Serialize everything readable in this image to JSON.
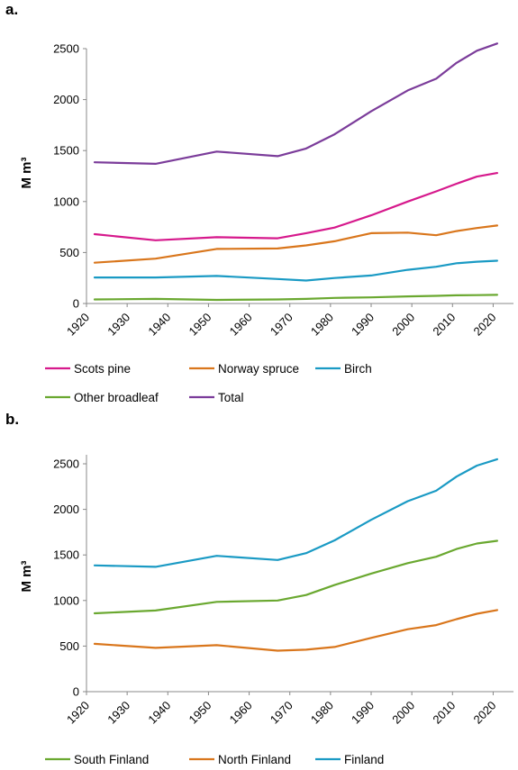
{
  "chart_data": [
    {
      "panel_label": "a.",
      "type": "line",
      "ylabel": "M m³",
      "x": [
        1922,
        1937,
        1952,
        1967,
        1974,
        1981,
        1990,
        1999,
        2006,
        2011,
        2016,
        2021
      ],
      "xlim": [
        1920,
        2025
      ],
      "xticks": [
        "1920",
        "1930",
        "1940",
        "1950",
        "1960",
        "1970",
        "1980",
        "1990",
        "2000",
        "2010",
        "2020"
      ],
      "ylim": [
        0,
        2500
      ],
      "yticks": [
        "0",
        "500",
        "1000",
        "1500",
        "2000",
        "2500"
      ],
      "grid": false,
      "legend_position": "bottom",
      "series": [
        {
          "name": "Scots pine",
          "color": "#d6198c",
          "values": [
            680,
            620,
            650,
            640,
            690,
            745,
            865,
            1000,
            1100,
            1175,
            1245,
            1280
          ]
        },
        {
          "name": "Norway spruce",
          "color": "#d9761c",
          "values": [
            400,
            440,
            535,
            540,
            570,
            610,
            690,
            695,
            670,
            710,
            740,
            765
          ]
        },
        {
          "name": "Birch",
          "color": "#1a9ac4",
          "values": [
            255,
            255,
            270,
            240,
            225,
            250,
            275,
            330,
            360,
            395,
            410,
            420
          ]
        },
        {
          "name": "Other broadleaf",
          "color": "#6aa830",
          "values": [
            40,
            45,
            35,
            40,
            45,
            55,
            60,
            70,
            75,
            80,
            82,
            85
          ]
        },
        {
          "name": "Total",
          "color": "#7b3c9a",
          "values": [
            1385,
            1370,
            1490,
            1445,
            1520,
            1660,
            1885,
            2090,
            2205,
            2360,
            2480,
            2550
          ]
        }
      ]
    },
    {
      "panel_label": "b.",
      "type": "line",
      "ylabel": "M m³",
      "x": [
        1922,
        1937,
        1952,
        1967,
        1974,
        1981,
        1990,
        1999,
        2006,
        2011,
        2016,
        2021
      ],
      "xlim": [
        1920,
        2025
      ],
      "xticks": [
        "1920",
        "1930",
        "1940",
        "1950",
        "1960",
        "1970",
        "1980",
        "1990",
        "2000",
        "2010",
        "2020"
      ],
      "ylim": [
        0,
        2500
      ],
      "yticks": [
        "0",
        "500",
        "1000",
        "1500",
        "2000",
        "2500"
      ],
      "grid": false,
      "legend_position": "bottom",
      "series": [
        {
          "name": "South Finland",
          "color": "#6aa830",
          "values": [
            860,
            890,
            985,
            1000,
            1060,
            1170,
            1295,
            1410,
            1480,
            1565,
            1625,
            1655
          ]
        },
        {
          "name": "North Finland",
          "color": "#d9761c",
          "values": [
            525,
            480,
            510,
            450,
            460,
            490,
            590,
            685,
            730,
            795,
            855,
            895
          ]
        },
        {
          "name": "Finland",
          "color": "#1a9ac4",
          "values": [
            1385,
            1370,
            1490,
            1445,
            1520,
            1660,
            1885,
            2090,
            2205,
            2360,
            2480,
            2550
          ]
        }
      ]
    }
  ]
}
